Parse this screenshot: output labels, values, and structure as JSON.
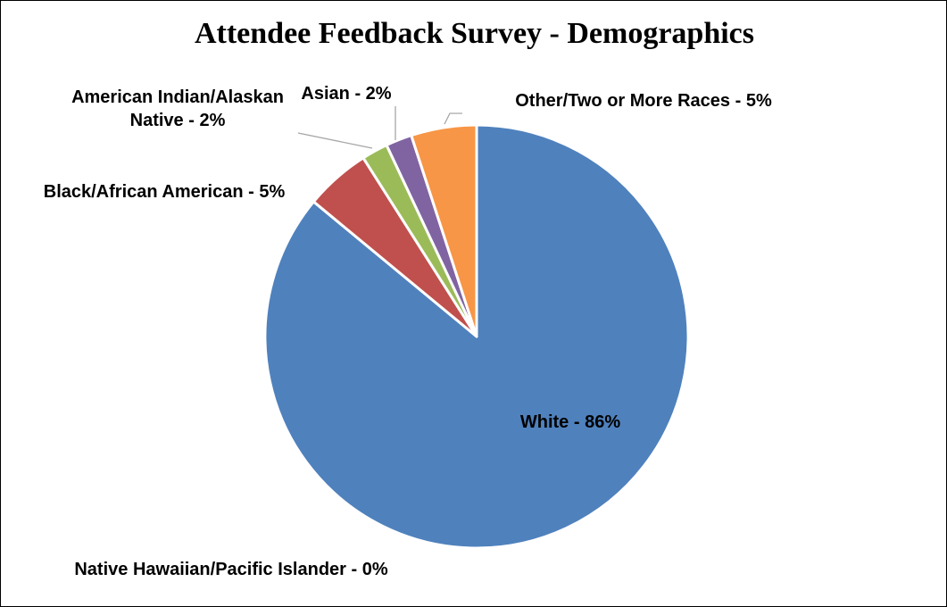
{
  "chart_data": {
    "type": "pie",
    "title": "Attendee Feedback Survey - Demographics",
    "start_angle_deg": 0,
    "direction": "clockwise",
    "legend": "none",
    "slices": [
      {
        "name": "White",
        "value": 86,
        "color": "#4F81BD",
        "label_lines": [
          "White - 86%"
        ]
      },
      {
        "name": "Native Hawaiian/Pacific Islander",
        "value": 0,
        "color": "#4BACC6",
        "label_lines": [
          "Native Hawaiian/Pacific Islander - 0%"
        ]
      },
      {
        "name": "Black/African American",
        "value": 5,
        "color": "#C0504D",
        "label_lines": [
          "Black/African American - 5%"
        ]
      },
      {
        "name": "American Indian/Alaskan Native",
        "value": 2,
        "color": "#9BBB59",
        "label_lines": [
          "American Indian/Alaskan",
          "Native - 2%"
        ]
      },
      {
        "name": "Asian",
        "value": 2,
        "color": "#8064A2",
        "label_lines": [
          "Asian - 2%"
        ]
      },
      {
        "name": "Other/Two or More Races",
        "value": 5,
        "color": "#F79646",
        "label_lines": [
          "Other/Two or More Races - 5%"
        ]
      }
    ]
  }
}
